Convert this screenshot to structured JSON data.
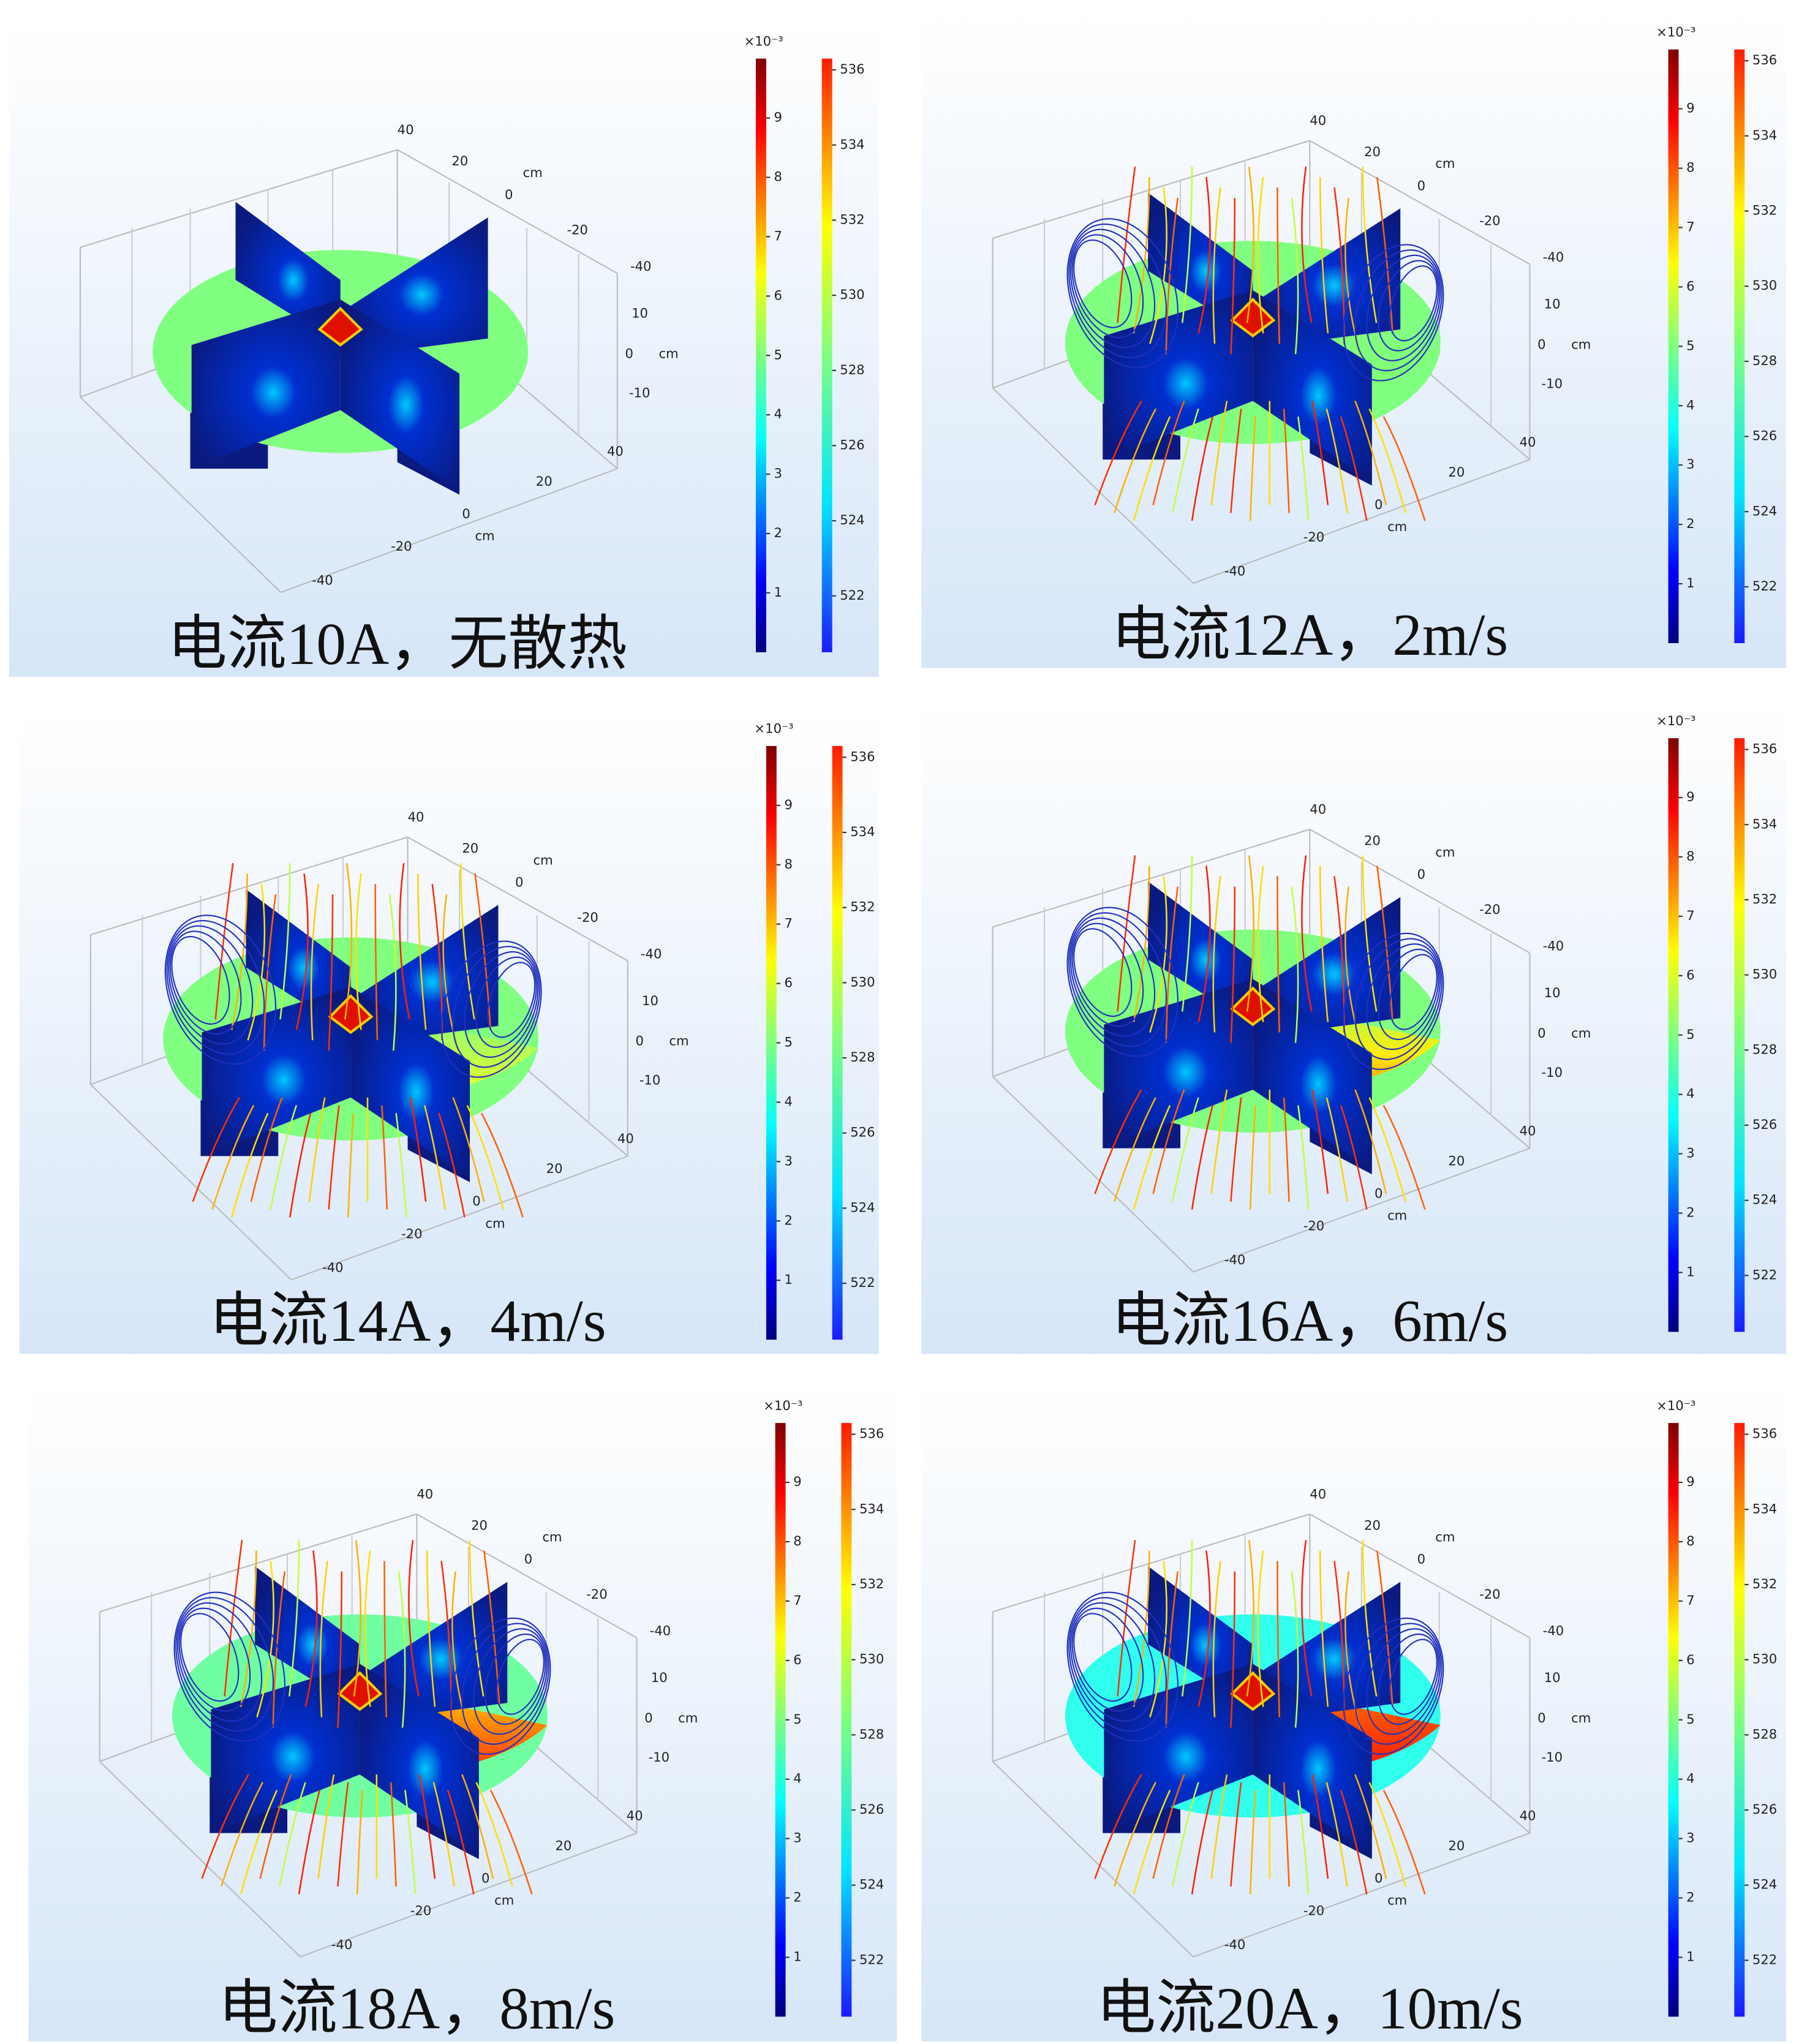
{
  "panels": [
    {
      "caption": "电流10A，无散热",
      "axis_labels": [
        "40",
        "20",
        "cm",
        "0",
        "-20",
        "-40",
        "10",
        "0",
        "cm",
        "-10",
        "40",
        "20",
        "0",
        "cm",
        "-20",
        "-40"
      ],
      "colorbar_left": {
        "exponent": "×10⁻³",
        "range": [
          0,
          10
        ],
        "ticks": [
          1,
          2,
          3,
          4,
          5,
          6,
          7,
          8,
          9
        ]
      },
      "colorbar_right": {
        "range": [
          520.5,
          536.3
        ],
        "ticks": [
          522,
          524,
          526,
          528,
          530,
          532,
          534,
          536
        ]
      }
    },
    {
      "caption": "电流12A，2m/s",
      "axis_labels": [
        "40",
        "20",
        "cm",
        "0",
        "-20",
        "-40",
        "10",
        "0",
        "cm",
        "-10",
        "40",
        "20",
        "0",
        "cm",
        "-20",
        "-40"
      ],
      "colorbar_left": {
        "exponent": "×10⁻³",
        "range": [
          0,
          10
        ],
        "ticks": [
          1,
          2,
          3,
          4,
          5,
          6,
          7,
          8,
          9
        ]
      },
      "colorbar_right": {
        "range": [
          520.5,
          536.3
        ],
        "ticks": [
          522,
          524,
          526,
          528,
          530,
          532,
          534,
          536
        ]
      }
    },
    {
      "caption": "电流14A，4m/s",
      "axis_labels": [
        "40",
        "20",
        "cm",
        "0",
        "-20",
        "-40",
        "10",
        "0",
        "cm",
        "-10",
        "40",
        "20",
        "0",
        "cm",
        "-20",
        "-40"
      ],
      "colorbar_left": {
        "exponent": "×10⁻³",
        "range": [
          0,
          10
        ],
        "ticks": [
          1,
          2,
          3,
          4,
          5,
          6,
          7,
          8,
          9
        ]
      },
      "colorbar_right": {
        "range": [
          520.5,
          536.3
        ],
        "ticks": [
          522,
          524,
          526,
          528,
          530,
          532,
          534,
          536
        ]
      }
    },
    {
      "caption": "电流16A，6m/s",
      "axis_labels": [
        "40",
        "20",
        "cm",
        "0",
        "-20",
        "-40",
        "10",
        "0",
        "cm",
        "-10",
        "40",
        "20",
        "0",
        "cm",
        "-20",
        "-40"
      ],
      "colorbar_left": {
        "exponent": "×10⁻³",
        "range": [
          0,
          10
        ],
        "ticks": [
          1,
          2,
          3,
          4,
          5,
          6,
          7,
          8,
          9
        ]
      },
      "colorbar_right": {
        "range": [
          520.5,
          536.3
        ],
        "ticks": [
          522,
          524,
          526,
          528,
          530,
          532,
          534,
          536
        ]
      }
    },
    {
      "caption": "电流18A，8m/s",
      "axis_labels": [
        "40",
        "20",
        "cm",
        "0",
        "-20",
        "-40",
        "10",
        "0",
        "cm",
        "-10",
        "40",
        "20",
        "0",
        "cm",
        "-20",
        "-40"
      ],
      "colorbar_left": {
        "exponent": "×10⁻³",
        "range": [
          0,
          10
        ],
        "ticks": [
          1,
          2,
          3,
          4,
          5,
          6,
          7,
          8,
          9
        ]
      },
      "colorbar_right": {
        "range": [
          520.5,
          536.3
        ],
        "ticks": [
          522,
          524,
          526,
          528,
          530,
          532,
          534,
          536
        ]
      }
    },
    {
      "caption": "电流20A，10m/s",
      "axis_labels": [
        "40",
        "20",
        "cm",
        "0",
        "-20",
        "-40",
        "10",
        "0",
        "cm",
        "-10",
        "40",
        "20",
        "0",
        "cm",
        "-20",
        "-40"
      ],
      "colorbar_left": {
        "exponent": "×10⁻³",
        "range": [
          0,
          10
        ],
        "ticks": [
          1,
          2,
          3,
          4,
          5,
          6,
          7,
          8,
          9
        ]
      },
      "colorbar_right": {
        "range": [
          520.5,
          536.3
        ],
        "ticks": [
          522,
          524,
          526,
          528,
          530,
          532,
          534,
          536
        ]
      }
    }
  ]
}
